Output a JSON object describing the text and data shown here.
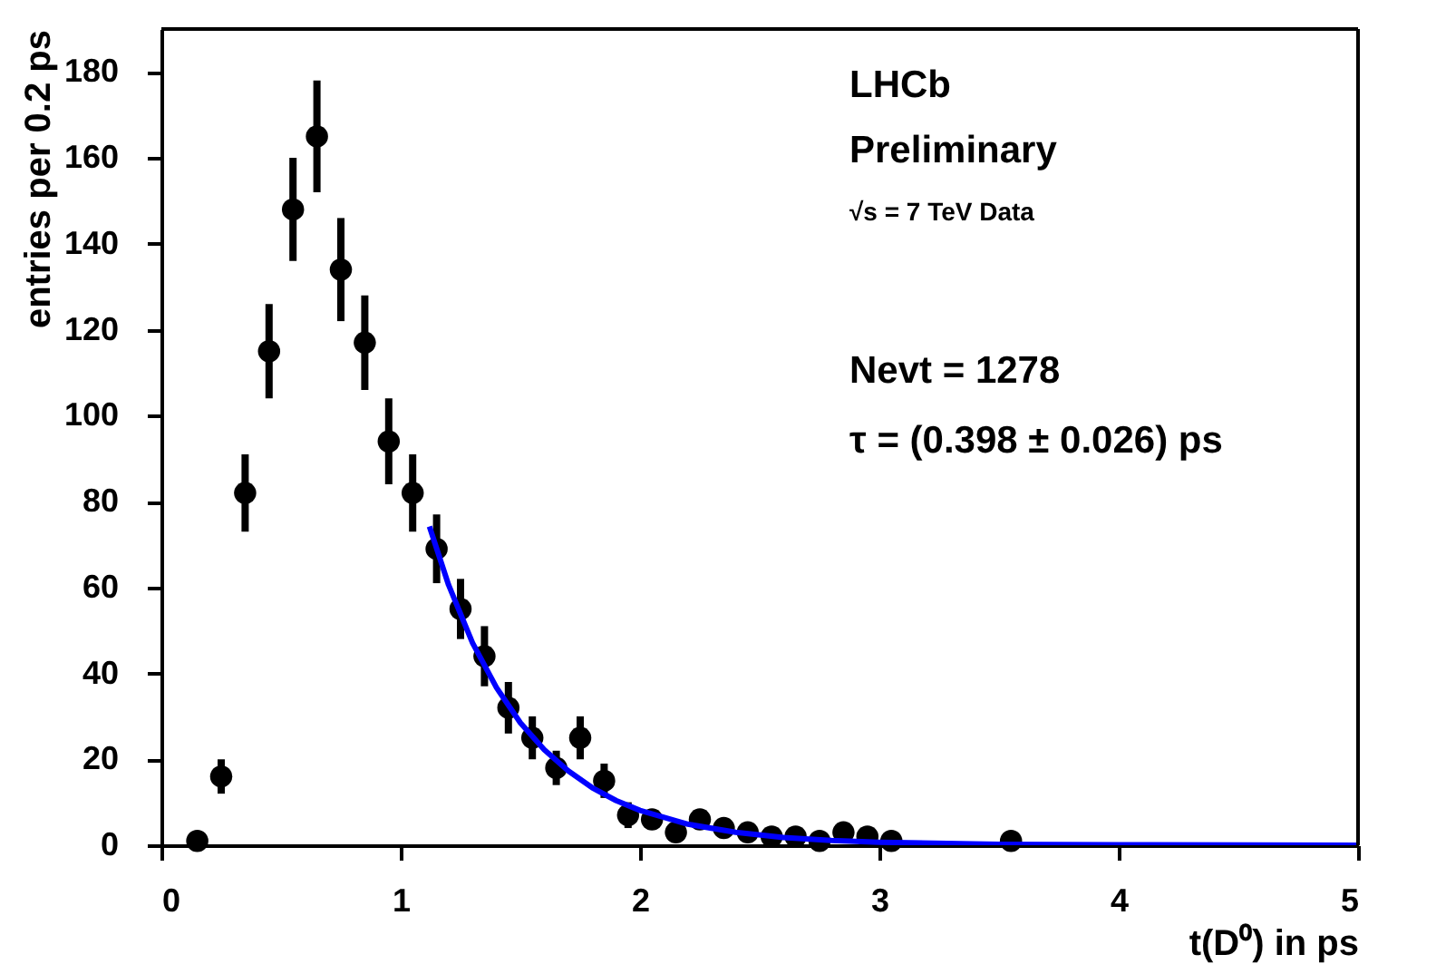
{
  "chart_data": {
    "type": "scatter",
    "xlabel": "t(D⁰) in ps",
    "ylabel": "entries per 0.2 ps",
    "xlim": [
      0,
      5
    ],
    "xticks": [
      0,
      1,
      2,
      3,
      4,
      5
    ],
    "ylim": [
      0,
      190
    ],
    "yticks": [
      0,
      20,
      40,
      60,
      80,
      100,
      120,
      140,
      160,
      180
    ],
    "marker": "circle",
    "annotations": [
      "LHCb",
      "Preliminary",
      "√s = 7 TeV Data",
      "Nevt = 1278",
      "τ = (0.398 ± 0.026) ps"
    ],
    "series": [
      {
        "color": "#000000",
        "x": [
          0.15,
          0.25,
          0.35,
          0.45,
          0.55,
          0.65,
          0.75,
          0.85,
          0.95,
          1.05,
          1.15,
          1.25,
          1.35,
          1.45,
          1.55,
          1.65,
          1.75,
          1.85,
          1.95,
          2.05,
          2.15,
          2.25,
          2.35,
          2.45,
          2.55,
          2.65,
          2.75,
          2.85,
          2.95,
          3.05,
          3.55
        ],
        "values": [
          1,
          16,
          82,
          115,
          148,
          165,
          134,
          117,
          94,
          82,
          69,
          55,
          44,
          32,
          25,
          18,
          25,
          15,
          7,
          6,
          3,
          6,
          4,
          3,
          2,
          2,
          1,
          3,
          2,
          1,
          1
        ],
        "errors": [
          1,
          4,
          9,
          11,
          12,
          13,
          12,
          11,
          10,
          9,
          8,
          7,
          7,
          6,
          5,
          4,
          5,
          4,
          3,
          2,
          2,
          2,
          2,
          2,
          1,
          1,
          1,
          2,
          1,
          1,
          1
        ]
      },
      {
        "type": "line",
        "color": "#0000ff",
        "line_style": "solid",
        "marker": "none",
        "x": [
          1.12,
          1.2,
          1.3,
          1.4,
          1.5,
          1.6,
          1.7,
          1.8,
          1.9,
          2.0,
          2.2,
          2.4,
          2.6,
          2.8,
          3.0,
          3.5,
          4.0,
          5.0
        ],
        "values": [
          74.2,
          60.6,
          47.1,
          36.7,
          28.5,
          22.2,
          17.3,
          13.4,
          10.4,
          8.1,
          4.9,
          3.0,
          1.8,
          1.1,
          0.7,
          0.2,
          0.1,
          0
        ]
      }
    ]
  }
}
